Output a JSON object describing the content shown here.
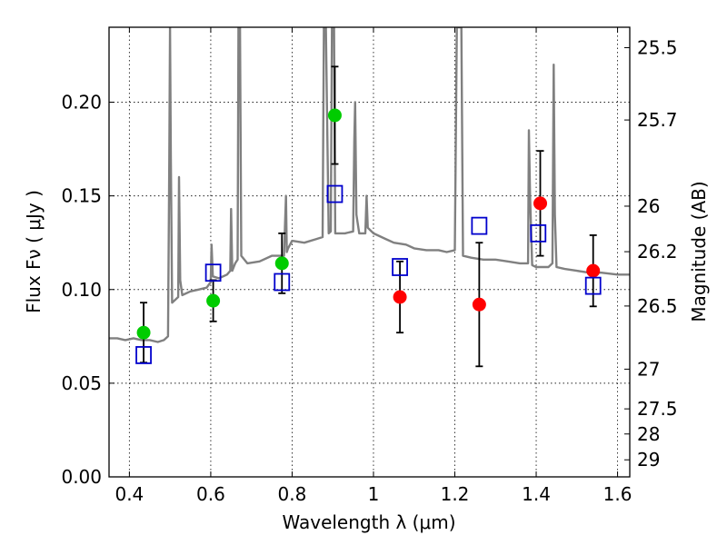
{
  "chart_data": {
    "type": "scatter",
    "xlabel": "Wavelength  λ (μm)",
    "ylabel": "Flux  Fν  ( μJy )",
    "ylabel_right": "Magnitude (AB)",
    "xlim": [
      0.35,
      1.63
    ],
    "ylim": [
      0.0,
      0.24
    ],
    "x_ticks": [
      0.4,
      0.6,
      0.8,
      1.0,
      1.2,
      1.4,
      1.6
    ],
    "x_tick_labels": [
      "0.4",
      "0.6",
      "0.8",
      "1",
      "1.2",
      "1.4",
      "1.6"
    ],
    "y_ticks": [
      0.0,
      0.05,
      0.1,
      0.15,
      0.2
    ],
    "y_tick_labels": [
      "0.00",
      "0.05",
      "0.10",
      "0.15",
      "0.20"
    ],
    "right_ticks": [
      {
        "label": "25.5",
        "flux": 0.2291
      },
      {
        "label": "25.7",
        "flux": 0.1905
      },
      {
        "label": "26",
        "flux": 0.1445
      },
      {
        "label": "26.2",
        "flux": 0.1202
      },
      {
        "label": "26.5",
        "flux": 0.0912
      },
      {
        "label": "27",
        "flux": 0.0575
      },
      {
        "label": "27.5",
        "flux": 0.0363
      },
      {
        "label": "28",
        "flux": 0.0229
      },
      {
        "label": "29",
        "flux": 0.0091
      }
    ],
    "grid": true,
    "series": [
      {
        "marker": "circle",
        "color": "#00cc00",
        "points": [
          {
            "x": 0.435,
            "y": 0.077,
            "yerr_lo": 0.016,
            "yerr_hi": 0.016
          },
          {
            "x": 0.606,
            "y": 0.094,
            "yerr_lo": 0.011,
            "yerr_hi": 0.011
          },
          {
            "x": 0.775,
            "y": 0.114,
            "yerr_lo": 0.016,
            "yerr_hi": 0.016
          },
          {
            "x": 0.905,
            "y": 0.193,
            "yerr_lo": 0.026,
            "yerr_hi": 0.026
          }
        ]
      },
      {
        "marker": "circle",
        "color": "#ff0000",
        "points": [
          {
            "x": 1.065,
            "y": 0.096,
            "yerr_lo": 0.019,
            "yerr_hi": 0.019
          },
          {
            "x": 1.26,
            "y": 0.092,
            "yerr_lo": 0.033,
            "yerr_hi": 0.033
          },
          {
            "x": 1.41,
            "y": 0.146,
            "yerr_lo": 0.028,
            "yerr_hi": 0.028
          },
          {
            "x": 1.54,
            "y": 0.11,
            "yerr_lo": 0.019,
            "yerr_hi": 0.019
          }
        ]
      },
      {
        "marker": "square-open",
        "color": "#0000cc",
        "points": [
          {
            "x": 0.435,
            "y": 0.065
          },
          {
            "x": 0.606,
            "y": 0.109
          },
          {
            "x": 0.775,
            "y": 0.104
          },
          {
            "x": 0.905,
            "y": 0.151
          },
          {
            "x": 1.065,
            "y": 0.112
          },
          {
            "x": 1.26,
            "y": 0.134
          },
          {
            "x": 1.405,
            "y": 0.13
          },
          {
            "x": 1.54,
            "y": 0.102
          }
        ]
      }
    ],
    "spectrum": {
      "color": "#808080",
      "x": [
        0.35,
        0.37,
        0.39,
        0.41,
        0.43,
        0.45,
        0.47,
        0.485,
        0.495,
        0.498,
        0.5,
        0.502,
        0.505,
        0.52,
        0.522,
        0.525,
        0.53,
        0.55,
        0.57,
        0.59,
        0.6,
        0.602,
        0.605,
        0.62,
        0.64,
        0.648,
        0.65,
        0.653,
        0.66,
        0.666,
        0.668,
        0.67,
        0.672,
        0.675,
        0.69,
        0.72,
        0.75,
        0.78,
        0.785,
        0.787,
        0.79,
        0.8,
        0.83,
        0.86,
        0.875,
        0.878,
        0.88,
        0.883,
        0.89,
        0.895,
        0.898,
        0.9,
        0.903,
        0.906,
        0.91,
        0.93,
        0.95,
        0.953,
        0.955,
        0.958,
        0.965,
        0.98,
        0.983,
        0.986,
        1.0,
        1.03,
        1.05,
        1.08,
        1.1,
        1.13,
        1.16,
        1.18,
        1.2,
        1.205,
        1.21,
        1.213,
        1.216,
        1.22,
        1.24,
        1.27,
        1.3,
        1.33,
        1.36,
        1.38,
        1.382,
        1.385,
        1.39,
        1.4,
        1.41,
        1.43,
        1.44,
        1.443,
        1.446,
        1.45,
        1.47,
        1.5,
        1.53,
        1.56,
        1.6,
        1.63
      ],
      "y": [
        0.074,
        0.074,
        0.073,
        0.074,
        0.073,
        0.073,
        0.072,
        0.073,
        0.075,
        0.17,
        0.24,
        0.17,
        0.093,
        0.096,
        0.16,
        0.105,
        0.097,
        0.099,
        0.1,
        0.101,
        0.104,
        0.124,
        0.107,
        0.106,
        0.108,
        0.11,
        0.143,
        0.11,
        0.114,
        0.116,
        0.24,
        0.24,
        0.24,
        0.118,
        0.114,
        0.115,
        0.118,
        0.118,
        0.15,
        0.12,
        0.122,
        0.126,
        0.125,
        0.127,
        0.128,
        0.24,
        0.24,
        0.24,
        0.13,
        0.131,
        0.24,
        0.24,
        0.24,
        0.13,
        0.13,
        0.13,
        0.131,
        0.18,
        0.2,
        0.14,
        0.13,
        0.13,
        0.15,
        0.133,
        0.13,
        0.127,
        0.125,
        0.124,
        0.122,
        0.121,
        0.121,
        0.12,
        0.121,
        0.24,
        0.24,
        0.24,
        0.24,
        0.118,
        0.117,
        0.116,
        0.116,
        0.115,
        0.114,
        0.114,
        0.185,
        0.15,
        0.113,
        0.112,
        0.112,
        0.112,
        0.114,
        0.22,
        0.14,
        0.112,
        0.111,
        0.11,
        0.109,
        0.109,
        0.108,
        0.108
      ]
    }
  }
}
